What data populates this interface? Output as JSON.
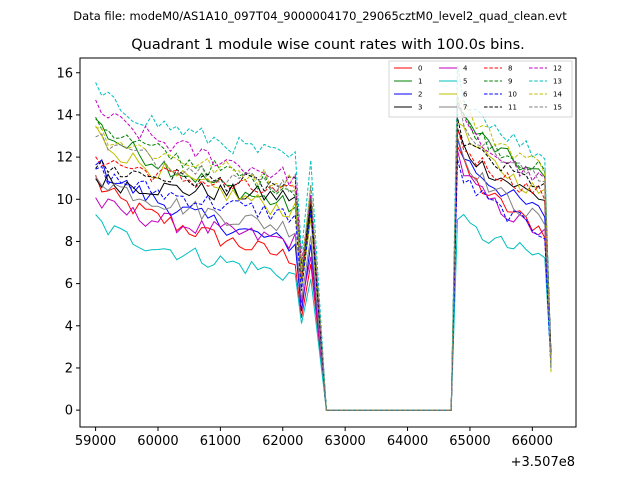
{
  "chart_data": {
    "type": "line",
    "suptitle": "Data file: modeM0/AS1A10_097T04_9000004170_29065cztM0_level2_quad_clean.evt",
    "title": "Quadrant 1 module wise count rates with 100.0s bins.",
    "xlabel": "",
    "ylabel": "",
    "x_offset_label": "+3.507e8",
    "xlim": [
      58750,
      66700
    ],
    "ylim": [
      -0.8,
      16.7
    ],
    "xticks": [
      59000,
      60000,
      61000,
      62000,
      63000,
      64000,
      65000,
      66000
    ],
    "xtick_labels": [
      "59000",
      "60000",
      "61000",
      "62000",
      "63000",
      "64000",
      "65000",
      "66000"
    ],
    "yticks": [
      0,
      2,
      4,
      6,
      8,
      10,
      12,
      14,
      16
    ],
    "ytick_labels": [
      "0",
      "2",
      "4",
      "6",
      "8",
      "10",
      "12",
      "14",
      "16"
    ],
    "legend_position": "top-right",
    "legend_columns": 4,
    "series": [
      {
        "name": "0",
        "color": "#ff0000",
        "dash": "solid",
        "seg1": [
          11.0,
          7.2
        ],
        "seg2": [
          12.5,
          8.5
        ]
      },
      {
        "name": "1",
        "color": "#008000",
        "dash": "solid",
        "seg1": [
          13.9,
          9.6
        ],
        "seg2": [
          14.8,
          11.0
        ]
      },
      {
        "name": "2",
        "color": "#0000ff",
        "dash": "solid",
        "seg1": [
          12.0,
          7.8
        ],
        "seg2": [
          12.9,
          9.3
        ]
      },
      {
        "name": "3",
        "color": "#000000",
        "dash": "solid",
        "seg1": [
          11.0,
          10.1
        ],
        "seg2": [
          13.2,
          10.0
        ]
      },
      {
        "name": "4",
        "color": "#bf00bf",
        "dash": "solid",
        "seg1": [
          10.0,
          8.0
        ],
        "seg2": [
          12.2,
          8.3
        ]
      },
      {
        "name": "5",
        "color": "#00bfbf",
        "dash": "solid",
        "seg1": [
          9.1,
          6.4
        ],
        "seg2": [
          9.4,
          7.2
        ]
      },
      {
        "name": "6",
        "color": "#bfbf00",
        "dash": "solid",
        "seg1": [
          13.3,
          9.4
        ],
        "seg2": [
          14.0,
          10.2
        ]
      },
      {
        "name": "7",
        "color": "#808080",
        "dash": "solid",
        "seg1": [
          11.3,
          8.6
        ],
        "seg2": [
          13.0,
          8.9
        ]
      },
      {
        "name": "8",
        "color": "#ff0000",
        "dash": "dashed",
        "seg1": [
          12.2,
          10.2
        ],
        "seg2": [
          13.2,
          10.2
        ]
      },
      {
        "name": "9",
        "color": "#008000",
        "dash": "dashed",
        "seg1": [
          14.0,
          10.5
        ],
        "seg2": [
          14.6,
          11.3
        ]
      },
      {
        "name": "10",
        "color": "#0000ff",
        "dash": "dashed",
        "seg1": [
          11.5,
          9.2
        ],
        "seg2": [
          11.8,
          8.4
        ]
      },
      {
        "name": "11",
        "color": "#000000",
        "dash": "dashed",
        "seg1": [
          11.6,
          10.6
        ],
        "seg2": [
          13.5,
          10.6
        ]
      },
      {
        "name": "12",
        "color": "#bf00bf",
        "dash": "dashed",
        "seg1": [
          14.6,
          11.0
        ],
        "seg2": [
          14.4,
          10.8
        ]
      },
      {
        "name": "13",
        "color": "#00bfbf",
        "dash": "dashed",
        "seg1": [
          15.3,
          11.9
        ],
        "seg2": [
          16.0,
          12.0
        ]
      },
      {
        "name": "14",
        "color": "#bfbf00",
        "dash": "dashed",
        "seg1": [
          13.5,
          10.8
        ],
        "seg2": [
          15.2,
          11.5
        ]
      },
      {
        "name": "15",
        "color": "#808080",
        "dash": "dashed",
        "seg1": [
          13.1,
          10.6
        ],
        "seg2": [
          14.6,
          10.8
        ]
      }
    ],
    "time_bins": {
      "seg1_start": 59000,
      "seg1_end": 62200,
      "dip_x": 62300,
      "peak_x": 62450,
      "drop_x": 62700,
      "gap_end": 64700,
      "seg2_start": 64800,
      "seg2_end": 66200,
      "seg2_drop": 66300,
      "bin": 100
    }
  }
}
